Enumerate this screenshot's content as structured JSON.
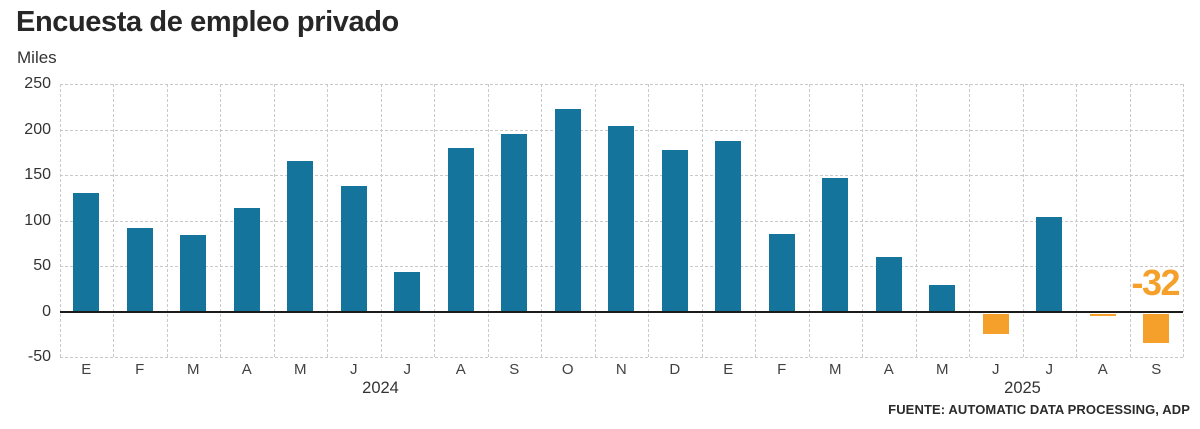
{
  "title": "Encuesta de empleo privado",
  "subtitle": "Miles",
  "source": "FUENTE: AUTOMATIC DATA PROCESSING, ADP",
  "chart_data": {
    "type": "bar",
    "title": "Encuesta de empleo privado",
    "ylabel": "Miles",
    "categories": [
      "E",
      "F",
      "M",
      "A",
      "M",
      "J",
      "J",
      "A",
      "S",
      "O",
      "N",
      "D",
      "E",
      "F",
      "M",
      "A",
      "M",
      "J",
      "J",
      "A",
      "S"
    ],
    "values": [
      130,
      92,
      84,
      114,
      165,
      138,
      43,
      180,
      195,
      222,
      204,
      177,
      187,
      85,
      147,
      60,
      29,
      -23,
      104,
      -3,
      -32
    ],
    "year_labels": [
      {
        "label": "2024",
        "between": [
          5,
          6
        ]
      },
      {
        "label": "2025",
        "between": [
          17,
          18
        ]
      }
    ],
    "ylim": [
      -50,
      250
    ],
    "yticks": [
      250,
      200,
      150,
      100,
      50,
      0,
      -50
    ],
    "grid": "dashed",
    "legend": "none",
    "colors": {
      "positive": "#15749c",
      "negative": "#f5a02b"
    },
    "annotation": {
      "text": "-32",
      "month_index": 20,
      "color": "#f5a02b"
    }
  }
}
